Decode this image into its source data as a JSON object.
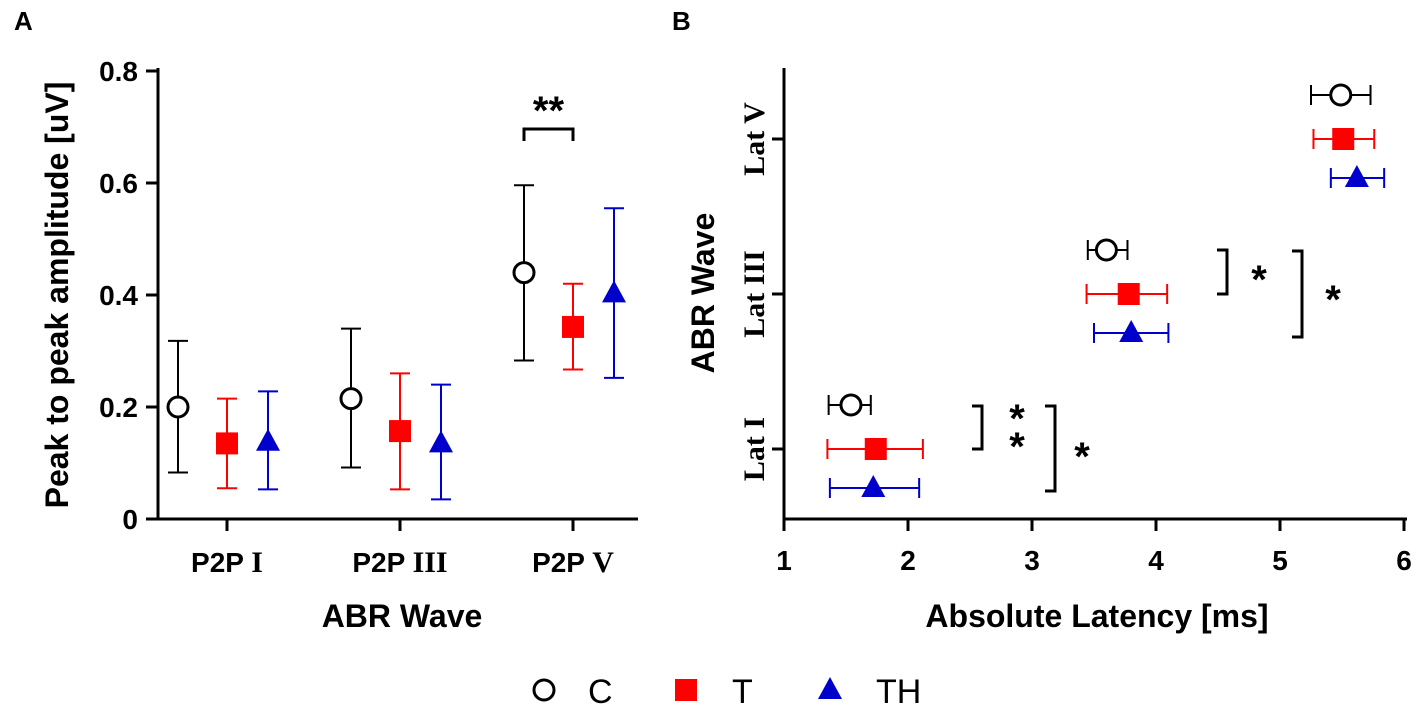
{
  "colors": {
    "C": "#000000",
    "T": "#ff0000",
    "TH": "#0000cc"
  },
  "legend": [
    {
      "key": "C",
      "label": "C",
      "marker": "circle-open"
    },
    {
      "key": "T",
      "label": "T",
      "marker": "square"
    },
    {
      "key": "TH",
      "label": "TH",
      "marker": "triangle"
    }
  ],
  "chart_data": [
    {
      "panel": "A",
      "type": "scatter",
      "xlabel": "ABR Wave",
      "ylabel": "Peak to peak amplitude [uV]",
      "ylim": [
        0,
        0.8
      ],
      "yticks": [
        "0",
        "0.2",
        "0.4",
        "0.6",
        "0.8"
      ],
      "categories": [
        {
          "prefix": "P2P",
          "numeral": "I"
        },
        {
          "prefix": "P2P",
          "numeral": "III"
        },
        {
          "prefix": "P2P",
          "numeral": "V"
        }
      ],
      "series": [
        {
          "name": "C",
          "values": [
            0.2,
            0.215,
            0.44
          ],
          "lower": [
            0.083,
            0.092,
            0.283
          ],
          "upper": [
            0.318,
            0.34,
            0.596
          ]
        },
        {
          "name": "T",
          "values": [
            0.135,
            0.157,
            0.343
          ],
          "lower": [
            0.055,
            0.053,
            0.267
          ],
          "upper": [
            0.215,
            0.26,
            0.42
          ]
        },
        {
          "name": "TH",
          "values": [
            0.138,
            0.135,
            0.403
          ],
          "lower": [
            0.053,
            0.035,
            0.252
          ],
          "upper": [
            0.228,
            0.24,
            0.555
          ]
        }
      ],
      "annotations": [
        {
          "text": "**",
          "between": [
            "C",
            "T"
          ],
          "category": "P2P V"
        }
      ]
    },
    {
      "panel": "B",
      "type": "scatter",
      "xlabel": "Absolute Latency [ms]",
      "ylabel": "ABR Wave",
      "xlim": [
        1,
        6
      ],
      "xticks": [
        "1",
        "2",
        "3",
        "4",
        "5",
        "6"
      ],
      "categories": [
        {
          "prefix": "Lat",
          "numeral": "I"
        },
        {
          "prefix": "Lat",
          "numeral": "III"
        },
        {
          "prefix": "Lat",
          "numeral": "V"
        }
      ],
      "series": [
        {
          "name": "C",
          "values": [
            1.54,
            3.6,
            5.49
          ],
          "lower": [
            1.36,
            3.45,
            5.25
          ],
          "upper": [
            1.7,
            3.77,
            5.73
          ]
        },
        {
          "name": "T",
          "values": [
            1.74,
            3.78,
            5.51
          ],
          "lower": [
            1.35,
            3.44,
            5.27
          ],
          "upper": [
            2.12,
            4.09,
            5.76
          ]
        },
        {
          "name": "TH",
          "values": [
            1.72,
            3.8,
            5.62
          ],
          "lower": [
            1.37,
            3.5,
            5.41
          ],
          "upper": [
            2.09,
            4.1,
            5.84
          ]
        }
      ],
      "annotations": [
        {
          "text": "*",
          "between": [
            "C",
            "T"
          ],
          "category": "Lat III"
        },
        {
          "text": "*",
          "between": [
            "C",
            "TH"
          ],
          "category": "Lat III"
        },
        {
          "text": "**",
          "between": [
            "C",
            "T"
          ],
          "category": "Lat I"
        },
        {
          "text": "*",
          "between": [
            "C",
            "TH"
          ],
          "category": "Lat I"
        }
      ]
    }
  ]
}
